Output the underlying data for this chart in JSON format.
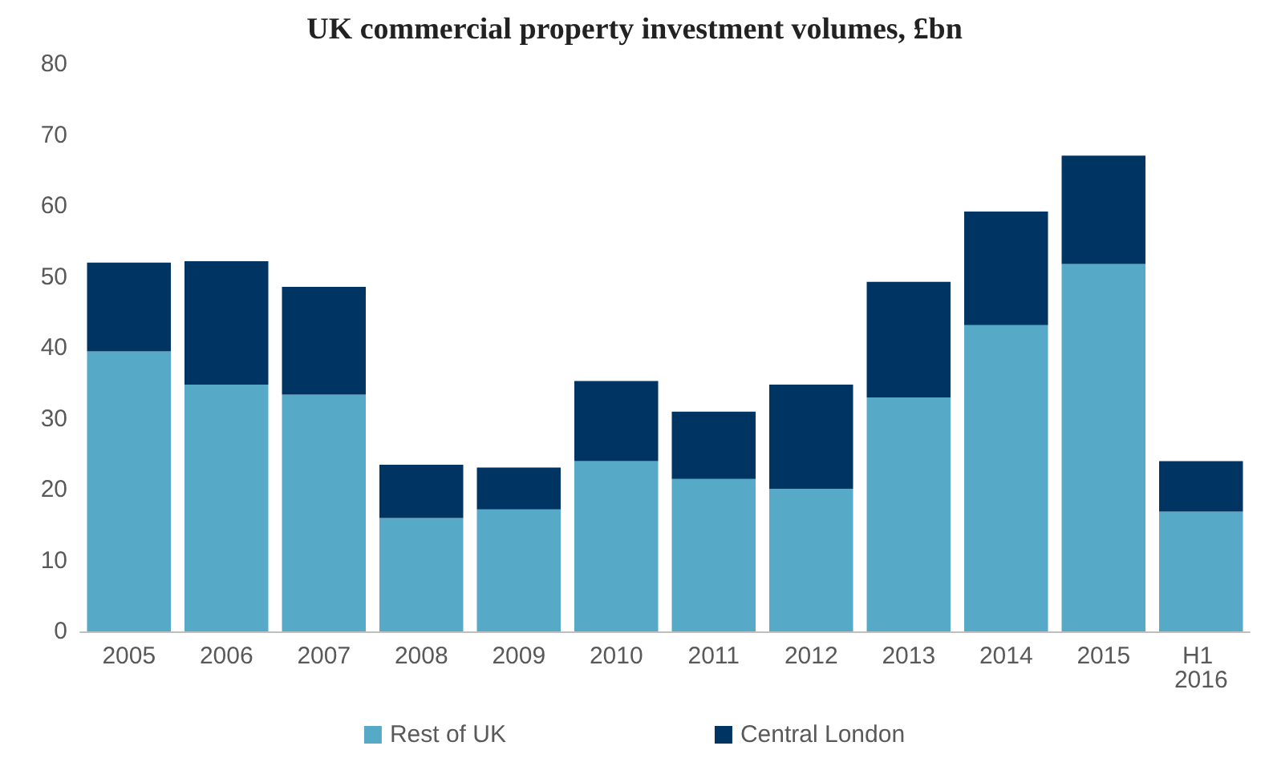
{
  "chart_data": {
    "type": "bar",
    "title": "UK commercial property investment volumes, £bn",
    "categories": [
      "2005",
      "2006",
      "2007",
      "2008",
      "2009",
      "2010",
      "2011",
      "2012",
      "2013",
      "2014",
      "2015",
      "H1 2016"
    ],
    "stacked": true,
    "series": [
      {
        "name": "Rest of UK",
        "color": "#56aac8",
        "values": [
          39.5,
          34.8,
          33.4,
          16.0,
          17.2,
          24.0,
          21.5,
          20.1,
          33.0,
          43.2,
          51.8,
          16.9
        ]
      },
      {
        "name": "Central London",
        "color": "#003462",
        "values": [
          12.5,
          17.4,
          15.2,
          7.5,
          5.9,
          11.3,
          9.5,
          14.7,
          16.3,
          16.0,
          15.3,
          7.1
        ]
      }
    ],
    "ylim": [
      0,
      80
    ],
    "yticks": [
      0,
      10,
      20,
      30,
      40,
      50,
      60,
      70,
      80
    ],
    "grid": false,
    "legend": "bottom"
  }
}
